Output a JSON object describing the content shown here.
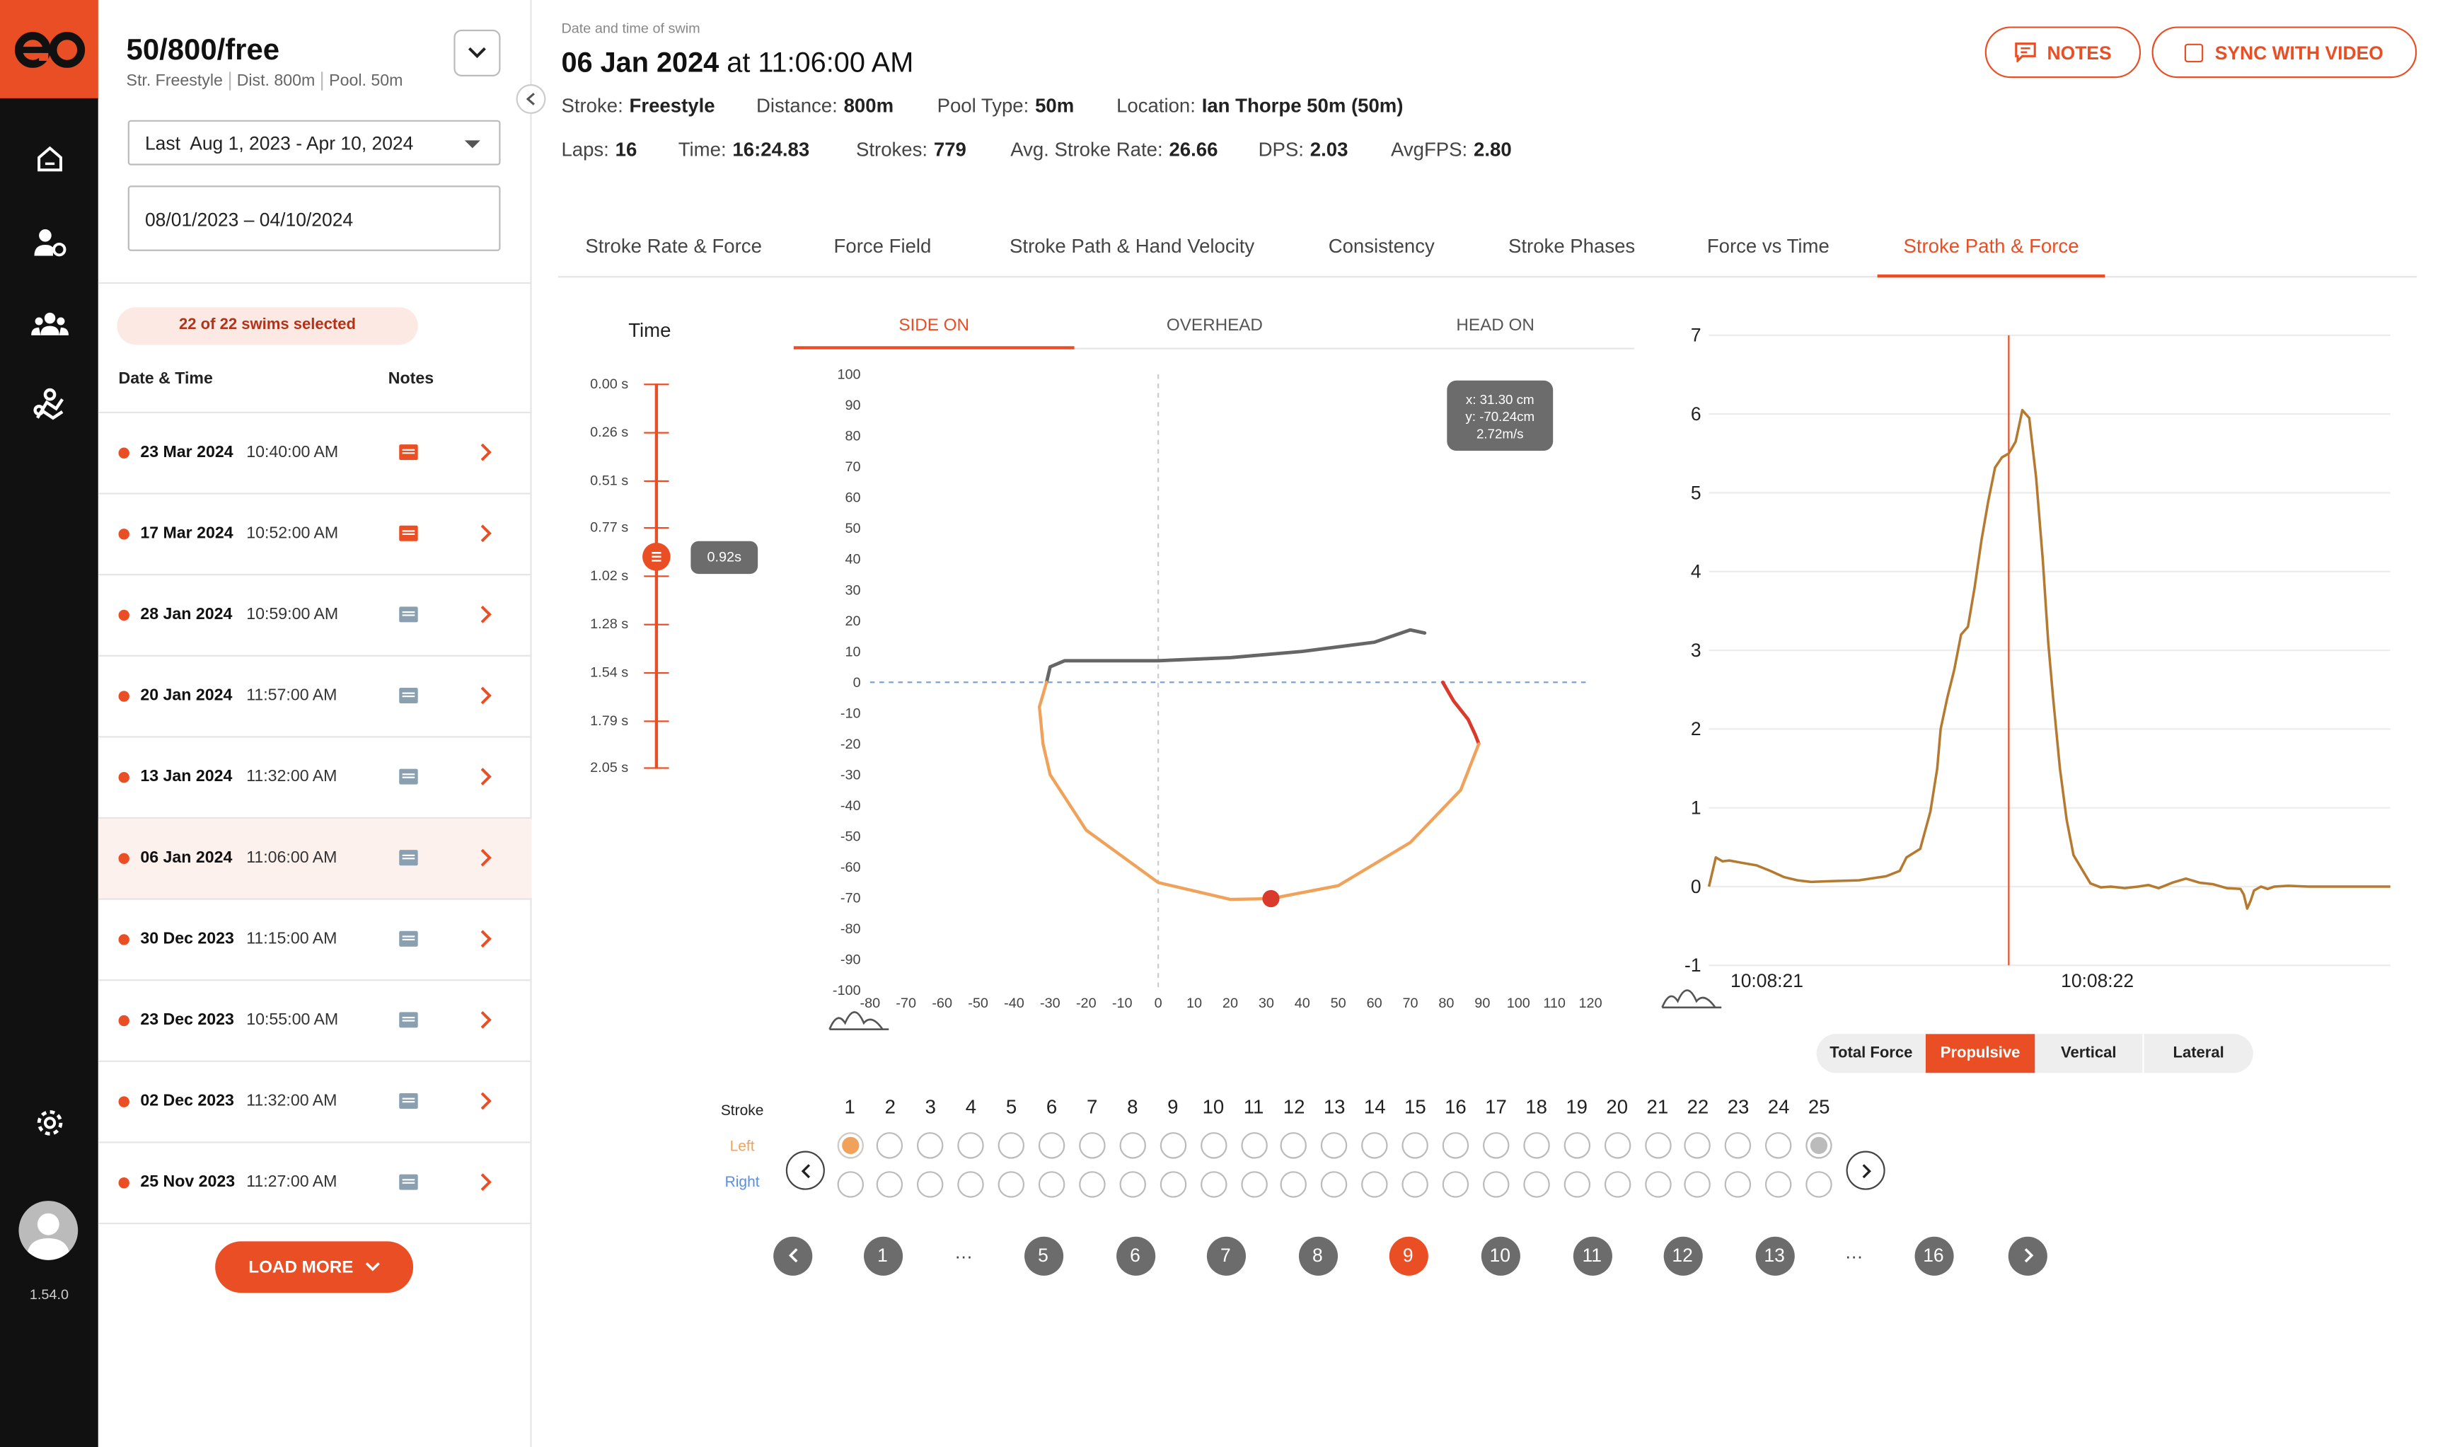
{
  "app": {
    "version": "1.54.0"
  },
  "rail": {
    "items": [
      "home-icon",
      "coach-icon",
      "team-icon",
      "swimmer-icon",
      "gear-icon"
    ]
  },
  "panel": {
    "title": "50/800/free",
    "sub": [
      "Str. Freestyle",
      "Dist. 800m",
      "Pool. 50m"
    ],
    "range_label": "Last  Aug 1, 2023 - Apr 10, 2024",
    "date_value": "08/01/2023 – 04/10/2024",
    "selected_badge": "22 of 22 swims selected",
    "col_date": "Date & Time",
    "col_notes": "Notes",
    "rows": [
      {
        "date": "23 Mar 2024",
        "time": "10:40:00 AM",
        "note": true,
        "selected": false
      },
      {
        "date": "17 Mar 2024",
        "time": "10:52:00 AM",
        "note": true,
        "selected": false
      },
      {
        "date": "28 Jan 2024",
        "time": "10:59:00 AM",
        "note": false,
        "selected": false
      },
      {
        "date": "20 Jan 2024",
        "time": "11:57:00 AM",
        "note": false,
        "selected": false
      },
      {
        "date": "13 Jan 2024",
        "time": "11:32:00 AM",
        "note": false,
        "selected": false
      },
      {
        "date": "06 Jan 2024",
        "time": "11:06:00 AM",
        "note": false,
        "selected": true
      },
      {
        "date": "30 Dec 2023",
        "time": "11:15:00 AM",
        "note": false,
        "selected": false
      },
      {
        "date": "23 Dec 2023",
        "time": "10:55:00 AM",
        "note": false,
        "selected": false
      },
      {
        "date": "02 Dec 2023",
        "time": "11:32:00 AM",
        "note": false,
        "selected": false
      },
      {
        "date": "25 Nov 2023",
        "time": "11:27:00 AM",
        "note": false,
        "selected": false
      }
    ],
    "load_more": "LOAD MORE"
  },
  "header": {
    "caption": "Date and time of swim",
    "date": "06 Jan 2024",
    "time_prefix": "at 11:06:00 AM",
    "notes_btn": "NOTES",
    "sync_btn": "SYNC WITH VIDEO",
    "meta1": [
      {
        "label": "Stroke:",
        "value": "Freestyle"
      },
      {
        "label": "Distance:",
        "value": "800m"
      },
      {
        "label": "Pool Type:",
        "value": "50m"
      },
      {
        "label": "Location:",
        "value": "Ian Thorpe 50m (50m)"
      }
    ],
    "meta2": [
      {
        "label": "Laps:",
        "value": "16"
      },
      {
        "label": "Time:",
        "value": "16:24.83"
      },
      {
        "label": "Strokes:",
        "value": "779"
      },
      {
        "label": "Avg. Stroke Rate:",
        "value": "26.66"
      },
      {
        "label": "DPS:",
        "value": "2.03"
      },
      {
        "label": "AvgFPS:",
        "value": "2.80"
      }
    ]
  },
  "tabs": [
    "Stroke Rate & Force",
    "Force Field",
    "Stroke Path & Hand Velocity",
    "Consistency",
    "Stroke Phases",
    "Force vs Time",
    "Stroke Path & Force"
  ],
  "active_tab": 6,
  "time_slider": {
    "label": "Time",
    "ticks": [
      "0.00 s",
      "0.26 s",
      "0.51 s",
      "0.77 s",
      "1.02 s",
      "1.28 s",
      "1.54 s",
      "1.79 s",
      "2.05 s"
    ],
    "value": 0.92,
    "value_label": "0.92s"
  },
  "view_tabs": [
    "SIDE ON",
    "OVERHEAD",
    "HEAD ON"
  ],
  "active_view": 0,
  "force_modes": [
    "Total Force",
    "Propulsive",
    "Vertical",
    "Lateral"
  ],
  "active_force_mode": 1,
  "stroke_selector": {
    "label": "Stroke",
    "left_label": "Left",
    "right_label": "Right",
    "count": 25,
    "selected_left": 1
  },
  "pagination": {
    "pages": [
      "1",
      "…",
      "5",
      "6",
      "7",
      "8",
      "9",
      "10",
      "11",
      "12",
      "13",
      "…",
      "16"
    ],
    "active": "9"
  },
  "chart_data": [
    {
      "type": "line",
      "view": "SIDE ON",
      "xlim": [
        -80,
        120
      ],
      "ylim": [
        -100,
        100
      ],
      "x_ticks": [
        -80,
        -70,
        -60,
        -50,
        -40,
        -30,
        -20,
        -10,
        0,
        10,
        20,
        30,
        40,
        50,
        60,
        70,
        80,
        90,
        100,
        110,
        120
      ],
      "y_ticks": [
        100,
        90,
        80,
        70,
        60,
        50,
        40,
        30,
        20,
        10,
        0,
        -10,
        -20,
        -30,
        -40,
        -50,
        -60,
        -70,
        -80,
        -90,
        -100
      ],
      "series": [
        {
          "phase": "recovery",
          "color": "#666666",
          "points": [
            [
              -31,
              0
            ],
            [
              -30,
              5
            ],
            [
              -26,
              7
            ],
            [
              0,
              7
            ],
            [
              20,
              8
            ],
            [
              40,
              10
            ],
            [
              60,
              13
            ],
            [
              70,
              17
            ],
            [
              74,
              16
            ]
          ]
        },
        {
          "phase": "entry",
          "color": "#d93a2b",
          "points": [
            [
              79,
              0
            ],
            [
              82,
              -6
            ],
            [
              86,
              -12
            ],
            [
              88,
              -17
            ],
            [
              89,
              -20
            ]
          ]
        },
        {
          "phase": "pull",
          "color": "#f0a25b",
          "points": [
            [
              -31,
              0
            ],
            [
              -33,
              -8
            ],
            [
              -32,
              -20
            ],
            [
              -30,
              -30
            ],
            [
              -20,
              -48
            ],
            [
              0,
              -65
            ],
            [
              20,
              -70.5
            ],
            [
              31.3,
              -70.24
            ],
            [
              50,
              -66
            ],
            [
              70,
              -52
            ],
            [
              84,
              -35
            ],
            [
              89,
              -20
            ]
          ]
        }
      ],
      "marker": {
        "x": 31.3,
        "y": -70.24,
        "color": "#d93a2b"
      },
      "tooltip": [
        "x: 31.30 cm",
        "y: -70.24cm",
        "2.72m/s"
      ]
    },
    {
      "type": "line",
      "ylim": [
        -1,
        7
      ],
      "y_ticks": [
        7,
        6,
        5,
        4,
        3,
        2,
        1,
        0,
        -1
      ],
      "x_tick_labels": [
        "10:08:21",
        "10:08:22"
      ],
      "x_range": [
        0,
        100
      ],
      "x_tick_positions": [
        8.5,
        57
      ],
      "color": "#b5792f",
      "cursor_x": 44,
      "values_x": [
        0,
        1,
        2,
        3,
        5,
        7,
        9,
        11,
        13,
        15,
        18,
        22,
        26,
        28,
        29,
        31,
        32.5,
        33.5,
        34,
        35,
        36,
        37,
        38,
        39,
        40,
        41,
        42,
        43,
        44,
        45,
        46,
        47,
        48,
        49,
        49.8,
        50.5,
        51.5,
        52.5,
        53.5,
        55,
        56,
        57.5,
        59,
        61,
        63,
        64.5,
        66,
        68,
        70,
        72,
        74,
        76,
        78,
        78.5,
        79,
        79.5,
        80,
        81,
        82,
        83,
        85,
        88,
        91,
        95,
        100
      ],
      "values_y": [
        0,
        0.37,
        0.32,
        0.33,
        0.3,
        0.27,
        0.2,
        0.12,
        0.08,
        0.06,
        0.07,
        0.08,
        0.13,
        0.2,
        0.37,
        0.48,
        0.95,
        1.5,
        2.0,
        2.4,
        2.75,
        3.2,
        3.3,
        3.8,
        4.4,
        4.9,
        5.32,
        5.45,
        5.5,
        5.65,
        6.05,
        5.95,
        5.2,
        4.15,
        3.1,
        2.4,
        1.5,
        0.85,
        0.4,
        0.18,
        0.04,
        -0.01,
        0,
        -0.02,
        0,
        0.02,
        -0.02,
        0.05,
        0.1,
        0.05,
        0.03,
        -0.02,
        -0.03,
        -0.1,
        -0.28,
        -0.18,
        -0.05,
        0,
        -0.03,
        0,
        0.01,
        0,
        0,
        0,
        0
      ]
    }
  ]
}
